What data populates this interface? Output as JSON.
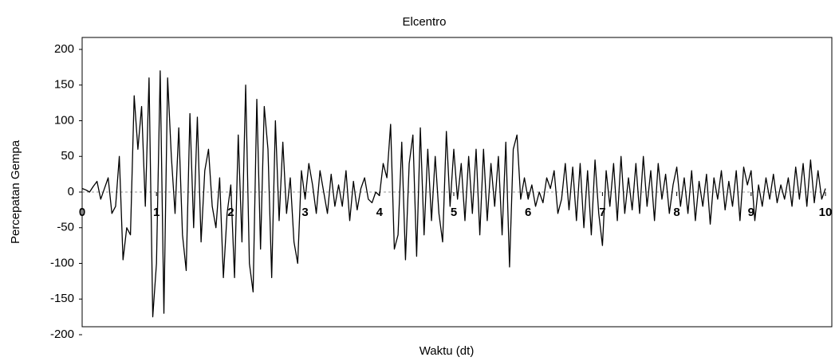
{
  "chart_data": {
    "type": "line",
    "title": "Elcentro",
    "x_label": "Waktu (dt)",
    "y_label": "Percepatan Gempa",
    "xlim": [
      0,
      10
    ],
    "xticks": [
      0,
      1,
      2,
      3,
      4,
      5,
      6,
      7,
      8,
      9,
      10
    ],
    "ylim": [
      -200,
      200
    ],
    "yticks": [
      -200,
      -150,
      -100,
      -50,
      0,
      50,
      100,
      150,
      200
    ],
    "grid": false,
    "x": [
      0,
      0.05,
      0.1,
      0.15,
      0.2,
      0.25,
      0.3,
      0.35,
      0.4,
      0.45,
      0.5,
      0.55,
      0.6,
      0.65,
      0.7,
      0.75,
      0.8,
      0.85,
      0.9,
      0.95,
      1,
      1.05,
      1.1,
      1.15,
      1.2,
      1.25,
      1.3,
      1.35,
      1.4,
      1.45,
      1.5,
      1.55,
      1.6,
      1.65,
      1.7,
      1.75,
      1.8,
      1.85,
      1.9,
      1.95,
      2,
      2.05,
      2.1,
      2.15,
      2.2,
      2.25,
      2.3,
      2.35,
      2.4,
      2.45,
      2.5,
      2.55,
      2.6,
      2.65,
      2.7,
      2.75,
      2.8,
      2.85,
      2.9,
      2.95,
      3,
      3.05,
      3.1,
      3.15,
      3.2,
      3.25,
      3.3,
      3.35,
      3.4,
      3.45,
      3.5,
      3.55,
      3.6,
      3.65,
      3.7,
      3.75,
      3.8,
      3.85,
      3.9,
      3.95,
      4,
      4.05,
      4.1,
      4.15,
      4.2,
      4.25,
      4.3,
      4.35,
      4.4,
      4.45,
      4.5,
      4.55,
      4.6,
      4.65,
      4.7,
      4.75,
      4.8,
      4.85,
      4.9,
      4.95,
      5,
      5.05,
      5.1,
      5.15,
      5.2,
      5.25,
      5.3,
      5.35,
      5.4,
      5.45,
      5.5,
      5.55,
      5.6,
      5.65,
      5.7,
      5.75,
      5.8,
      5.85,
      5.9,
      5.95,
      6,
      6.05,
      6.1,
      6.15,
      6.2,
      6.25,
      6.3,
      6.35,
      6.4,
      6.45,
      6.5,
      6.55,
      6.6,
      6.65,
      6.7,
      6.75,
      6.8,
      6.85,
      6.9,
      6.95,
      7,
      7.05,
      7.1,
      7.15,
      7.2,
      7.25,
      7.3,
      7.35,
      7.4,
      7.45,
      7.5,
      7.55,
      7.6,
      7.65,
      7.7,
      7.75,
      7.8,
      7.85,
      7.9,
      7.95,
      8,
      8.05,
      8.1,
      8.15,
      8.2,
      8.25,
      8.3,
      8.35,
      8.4,
      8.45,
      8.5,
      8.55,
      8.6,
      8.65,
      8.7,
      8.75,
      8.8,
      8.85,
      8.9,
      8.95,
      9,
      9.05,
      9.1,
      9.15,
      9.2,
      9.25,
      9.3,
      9.35,
      9.4,
      9.45,
      9.5,
      9.55,
      9.6,
      9.65,
      9.7,
      9.75,
      9.8,
      9.85,
      9.9,
      9.95,
      10
    ],
    "series": [
      {
        "color": "#000000",
        "values": [
          5,
          3,
          0,
          8,
          15,
          -10,
          5,
          20,
          -30,
          -20,
          50,
          -95,
          -50,
          -60,
          135,
          60,
          120,
          -20,
          160,
          -175,
          -100,
          170,
          -170,
          160,
          50,
          -30,
          90,
          -60,
          -110,
          110,
          -50,
          105,
          -70,
          30,
          60,
          -20,
          -50,
          20,
          -120,
          -30,
          10,
          -120,
          80,
          -70,
          150,
          -100,
          -140,
          130,
          -80,
          120,
          60,
          -120,
          100,
          -40,
          70,
          -30,
          20,
          -70,
          -100,
          30,
          -10,
          40,
          10,
          -30,
          30,
          0,
          -30,
          25,
          -20,
          10,
          -20,
          30,
          -40,
          15,
          -25,
          5,
          20,
          -10,
          -15,
          0,
          -5,
          40,
          20,
          95,
          -80,
          -60,
          70,
          -95,
          40,
          80,
          -90,
          90,
          -60,
          60,
          -40,
          50,
          -30,
          -70,
          85,
          -20,
          60,
          -10,
          40,
          -40,
          50,
          -30,
          60,
          -60,
          60,
          -40,
          40,
          -20,
          50,
          -60,
          70,
          -105,
          60,
          80,
          -10,
          20,
          -10,
          10,
          -20,
          0,
          -15,
          20,
          5,
          30,
          -30,
          -10,
          40,
          -25,
          35,
          -40,
          40,
          -50,
          30,
          -60,
          45,
          -30,
          -75,
          30,
          -20,
          40,
          -40,
          50,
          -30,
          20,
          -25,
          40,
          -30,
          50,
          -20,
          30,
          -40,
          40,
          -10,
          25,
          -30,
          10,
          35,
          -20,
          20,
          -30,
          30,
          -40,
          15,
          -20,
          25,
          -45,
          20,
          -10,
          30,
          -25,
          15,
          -20,
          30,
          -40,
          35,
          10,
          30,
          -40,
          10,
          -20,
          20,
          -10,
          25,
          -15,
          10,
          -10,
          20,
          -20,
          35,
          -10,
          40,
          -20,
          45,
          -15,
          30,
          -10,
          5
        ]
      }
    ]
  }
}
